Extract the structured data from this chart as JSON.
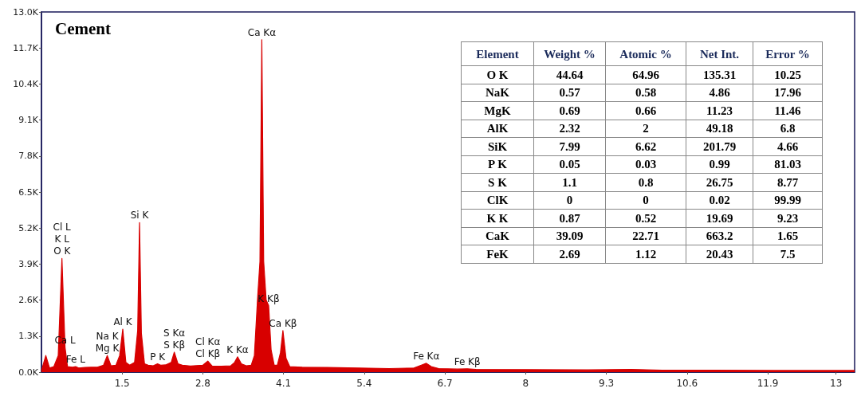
{
  "chart_data": {
    "type": "area",
    "title": "Cement",
    "x": [
      0.2,
      0.27,
      0.33,
      0.4,
      0.47,
      0.53,
      0.58,
      0.62,
      0.7,
      0.75,
      0.8,
      0.9,
      1.0,
      1.1,
      1.2,
      1.26,
      1.32,
      1.4,
      1.46,
      1.51,
      1.56,
      1.62,
      1.7,
      1.75,
      1.78,
      1.81,
      1.86,
      1.92,
      2.0,
      2.07,
      2.12,
      2.2,
      2.29,
      2.34,
      2.4,
      2.47,
      2.6,
      2.8,
      2.88,
      2.95,
      3.1,
      3.25,
      3.31,
      3.36,
      3.42,
      3.5,
      3.58,
      3.63,
      3.68,
      3.72,
      3.75,
      3.78,
      3.82,
      3.86,
      3.9,
      3.95,
      4.0,
      4.05,
      4.09,
      4.14,
      4.2,
      4.4,
      4.8,
      5.3,
      5.8,
      6.2,
      6.32,
      6.4,
      6.48,
      6.6,
      6.9,
      7.06,
      7.2,
      8.0,
      9.0,
      9.7,
      10.2,
      11.0,
      12.0,
      13.3
    ],
    "values": [
      50,
      600,
      150,
      200,
      600,
      4100,
      900,
      200,
      180,
      200,
      150,
      170,
      180,
      180,
      250,
      600,
      230,
      250,
      600,
      1550,
      350,
      250,
      350,
      1500,
      5400,
      1400,
      300,
      250,
      230,
      300,
      250,
      260,
      350,
      720,
      300,
      250,
      220,
      250,
      400,
      220,
      210,
      230,
      350,
      550,
      300,
      230,
      250,
      600,
      2600,
      4000,
      12000,
      4000,
      2600,
      2400,
      800,
      250,
      250,
      700,
      1500,
      500,
      200,
      180,
      170,
      150,
      130,
      150,
      250,
      320,
      200,
      130,
      110,
      120,
      100,
      90,
      80,
      100,
      70,
      70,
      60,
      60
    ],
    "color": "#d80000",
    "xlim": [
      0.2,
      13.3
    ],
    "xticks": [
      1.5,
      2.8,
      4.1,
      5.4,
      6.7,
      8.0,
      9.3,
      10.6,
      11.9,
      13.0
    ],
    "ylim": [
      0,
      13000
    ],
    "yticks": [
      {
        "value": 0,
        "label": "0.0K"
      },
      {
        "value": 1300,
        "label": "1.3K"
      },
      {
        "value": 2600,
        "label": "2.6K"
      },
      {
        "value": 3900,
        "label": "3.9K"
      },
      {
        "value": 5200,
        "label": "5.2K"
      },
      {
        "value": 6500,
        "label": "6.5K"
      },
      {
        "value": 7800,
        "label": "7.8K"
      },
      {
        "value": 9100,
        "label": "9.1K"
      },
      {
        "value": 10400,
        "label": "10.4K"
      },
      {
        "value": 11700,
        "label": "11.7K"
      },
      {
        "value": 13000,
        "label": "13.0K"
      }
    ],
    "grid": false,
    "annotations": [
      {
        "text": "O K",
        "x": 0.53,
        "y": 4100
      },
      {
        "text": "K L",
        "x": 0.53,
        "y": 4100
      },
      {
        "text": "Cl L",
        "x": 0.53,
        "y": 4100
      },
      {
        "text": "Ca L",
        "x": 0.58,
        "y": 900
      },
      {
        "text": "Fe L",
        "x": 0.75,
        "y": 200
      },
      {
        "text": "Mg K",
        "x": 1.26,
        "y": 600
      },
      {
        "text": "Na K",
        "x": 1.26,
        "y": 600
      },
      {
        "text": "Al K",
        "x": 1.51,
        "y": 1550
      },
      {
        "text": "Si K",
        "x": 1.78,
        "y": 5400
      },
      {
        "text": "P K",
        "x": 2.07,
        "y": 300
      },
      {
        "text": "S Kβ",
        "x": 2.34,
        "y": 720
      },
      {
        "text": "S Kα",
        "x": 2.34,
        "y": 720
      },
      {
        "text": "Cl Kβ",
        "x": 2.88,
        "y": 400
      },
      {
        "text": "Cl Kα",
        "x": 2.88,
        "y": 400
      },
      {
        "text": "K Kα",
        "x": 3.36,
        "y": 550
      },
      {
        "text": "Ca Kα",
        "x": 3.75,
        "y": 12000
      },
      {
        "text": "K Kβ",
        "x": 3.86,
        "y": 2400
      },
      {
        "text": "Ca Kβ",
        "x": 4.09,
        "y": 1500
      },
      {
        "text": "Fe Kα",
        "x": 6.4,
        "y": 320
      },
      {
        "text": "Fe Kβ",
        "x": 7.06,
        "y": 120
      },
      "Element",
      "Weight %",
      "Atomic %",
      "Net Int.",
      "Error %",
      "O K",
      "44.64",
      "64.96",
      "135.31",
      "10.25",
      "NaK",
      "0.57",
      "0.58",
      "4.86",
      "17.96",
      "MgK",
      "0.69",
      "0.66",
      "11.23",
      "11.46",
      "AlK",
      "2.32",
      "2",
      "49.18",
      "6.8",
      "SiK",
      "7.99",
      "6.62",
      "201.79",
      "4.66",
      "P K",
      "0.05",
      "0.03",
      "0.99",
      "81.03",
      "S K",
      "1.1",
      "0.8",
      "26.75",
      "8.77",
      "ClK",
      "0",
      "0",
      "0.02",
      "99.99",
      "K K",
      "0.87",
      "0.52",
      "19.69",
      "9.23",
      "CaK",
      "39.09",
      "22.71",
      "663.2",
      "1.65",
      "FeK",
      "2.69",
      "1.12",
      "20.43",
      "7.5"
    ]
  }
}
